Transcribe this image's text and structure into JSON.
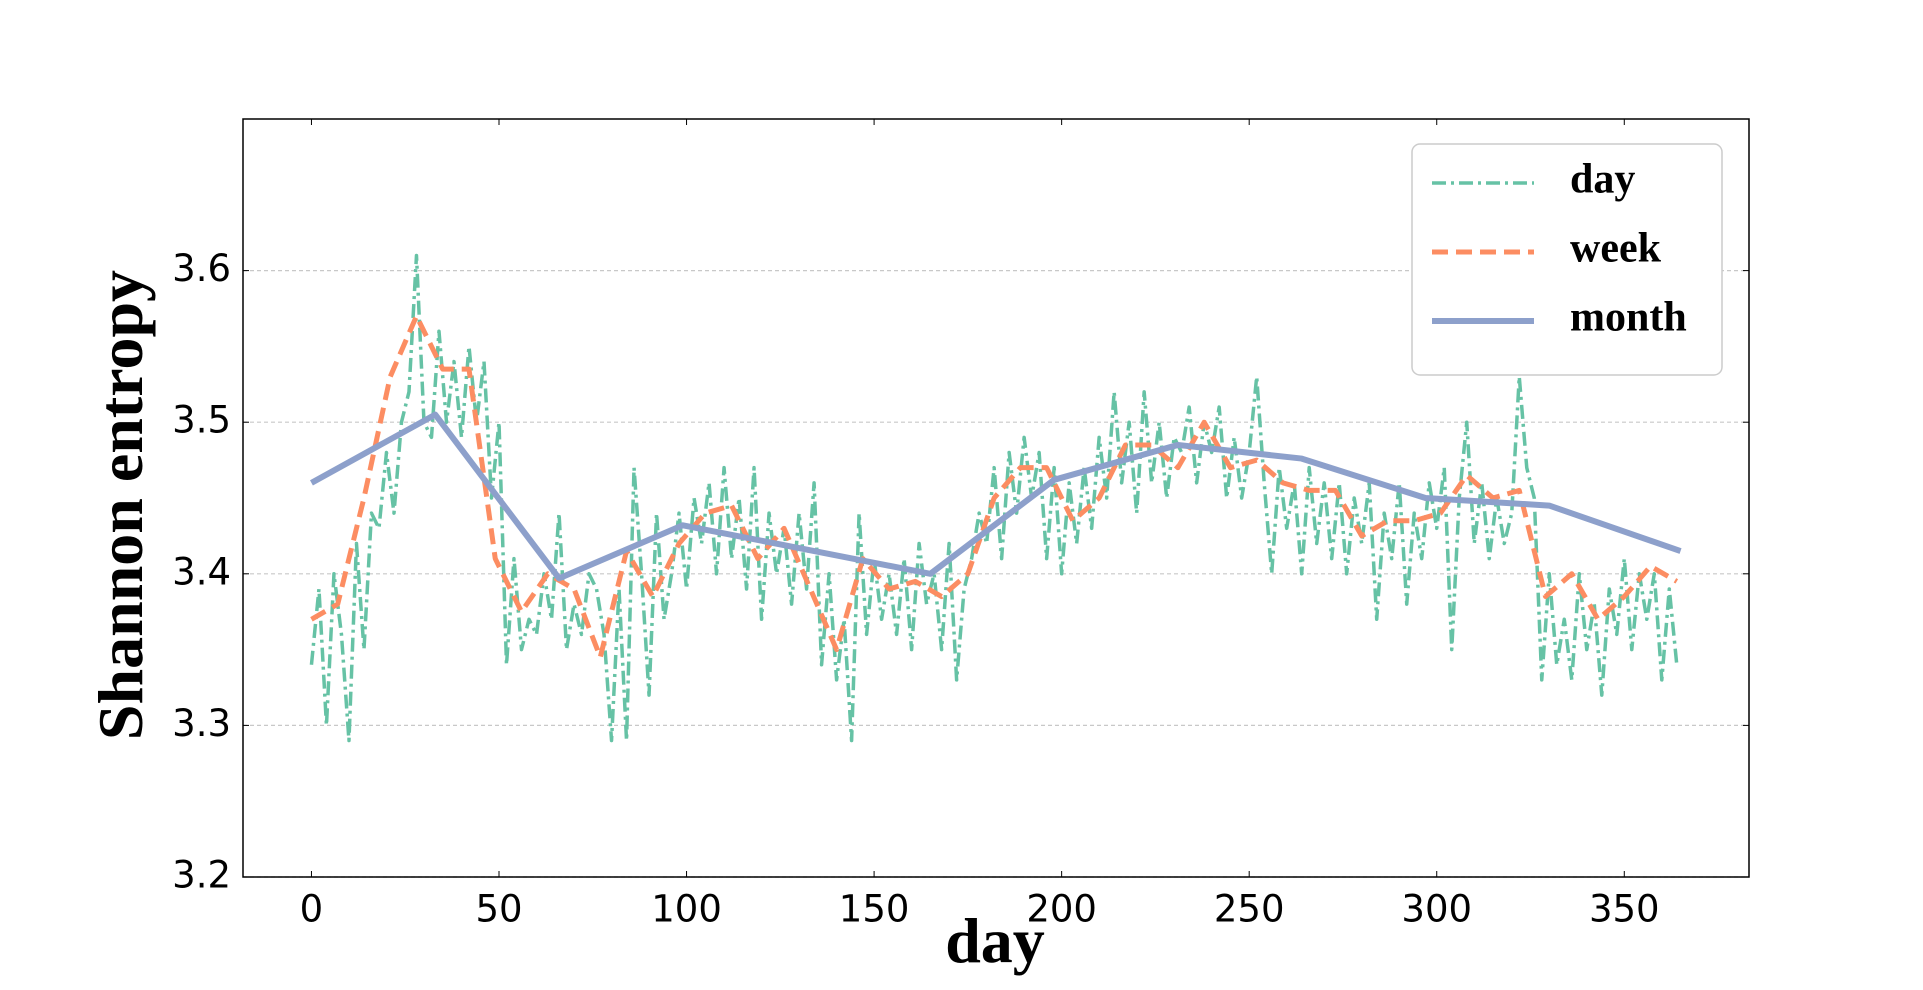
{
  "chart_data": {
    "type": "line",
    "x_label": "day",
    "y_label": "Shannon entropy",
    "xlim": [
      -18.25,
      383.25
    ],
    "xticks": [
      0,
      50,
      100,
      150,
      200,
      250,
      300,
      350
    ],
    "ylim": [
      3.2,
      3.7
    ],
    "yticks": [
      3.2,
      3.3,
      3.4,
      3.5,
      3.6
    ],
    "grid": true,
    "legend": "upper right",
    "series": [
      {
        "name": "day",
        "color": "#66c2a5",
        "x": [
          0,
          2,
          4,
          6,
          8,
          10,
          12,
          14,
          16,
          18,
          20,
          22,
          24,
          26,
          28,
          30,
          32,
          34,
          36,
          38,
          40,
          42,
          44,
          46,
          48,
          50,
          52,
          54,
          56,
          58,
          60,
          62,
          64,
          66,
          68,
          70,
          72,
          74,
          76,
          78,
          80,
          82,
          84,
          86,
          88,
          90,
          92,
          94,
          96,
          98,
          100,
          102,
          104,
          106,
          108,
          110,
          112,
          114,
          116,
          118,
          120,
          122,
          124,
          126,
          128,
          130,
          132,
          134,
          136,
          138,
          140,
          142,
          144,
          146,
          148,
          150,
          152,
          154,
          156,
          158,
          160,
          162,
          164,
          166,
          168,
          170,
          172,
          174,
          176,
          178,
          180,
          182,
          184,
          186,
          188,
          190,
          192,
          194,
          196,
          198,
          200,
          202,
          204,
          206,
          208,
          210,
          212,
          214,
          216,
          218,
          220,
          222,
          224,
          226,
          228,
          230,
          232,
          234,
          236,
          238,
          240,
          242,
          244,
          246,
          248,
          250,
          252,
          254,
          256,
          258,
          260,
          262,
          264,
          266,
          268,
          270,
          272,
          274,
          276,
          278,
          280,
          282,
          284,
          286,
          288,
          290,
          292,
          294,
          296,
          298,
          300,
          302,
          304,
          306,
          308,
          310,
          312,
          314,
          316,
          318,
          320,
          322,
          324,
          326,
          328,
          330,
          332,
          334,
          336,
          338,
          340,
          342,
          344,
          346,
          348,
          350,
          352,
          354,
          356,
          358,
          360,
          362,
          364
        ],
        "values": [
          3.34,
          3.39,
          3.3,
          3.4,
          3.36,
          3.29,
          3.42,
          3.35,
          3.44,
          3.43,
          3.48,
          3.44,
          3.5,
          3.52,
          3.61,
          3.5,
          3.49,
          3.56,
          3.5,
          3.54,
          3.49,
          3.55,
          3.5,
          3.54,
          3.45,
          3.5,
          3.34,
          3.41,
          3.35,
          3.37,
          3.36,
          3.4,
          3.37,
          3.44,
          3.35,
          3.38,
          3.36,
          3.4,
          3.39,
          3.36,
          3.29,
          3.39,
          3.29,
          3.47,
          3.4,
          3.32,
          3.44,
          3.37,
          3.4,
          3.44,
          3.39,
          3.45,
          3.42,
          3.46,
          3.4,
          3.47,
          3.41,
          3.45,
          3.39,
          3.47,
          3.37,
          3.44,
          3.4,
          3.43,
          3.38,
          3.44,
          3.39,
          3.46,
          3.34,
          3.4,
          3.33,
          3.37,
          3.29,
          3.44,
          3.36,
          3.41,
          3.37,
          3.4,
          3.36,
          3.41,
          3.35,
          3.42,
          3.38,
          3.4,
          3.35,
          3.42,
          3.33,
          3.39,
          3.41,
          3.44,
          3.42,
          3.47,
          3.41,
          3.48,
          3.44,
          3.49,
          3.45,
          3.48,
          3.41,
          3.47,
          3.4,
          3.46,
          3.42,
          3.47,
          3.43,
          3.49,
          3.45,
          3.52,
          3.46,
          3.5,
          3.44,
          3.52,
          3.46,
          3.5,
          3.45,
          3.49,
          3.48,
          3.51,
          3.46,
          3.5,
          3.48,
          3.51,
          3.45,
          3.49,
          3.45,
          3.48,
          3.53,
          3.46,
          3.4,
          3.47,
          3.43,
          3.46,
          3.4,
          3.47,
          3.42,
          3.46,
          3.41,
          3.46,
          3.4,
          3.45,
          3.42,
          3.46,
          3.37,
          3.44,
          3.41,
          3.46,
          3.38,
          3.44,
          3.41,
          3.46,
          3.43,
          3.47,
          3.35,
          3.45,
          3.5,
          3.42,
          3.46,
          3.41,
          3.45,
          3.42,
          3.44,
          3.53,
          3.47,
          3.45,
          3.33,
          3.4,
          3.34,
          3.37,
          3.33,
          3.4,
          3.35,
          3.38,
          3.32,
          3.39,
          3.36,
          3.41,
          3.35,
          3.4,
          3.37,
          3.4,
          3.33,
          3.39,
          3.34
        ]
      },
      {
        "name": "week",
        "color": "#fc8d62",
        "x": [
          0,
          7,
          14,
          21,
          28,
          35,
          42,
          49,
          56,
          63,
          70,
          77,
          84,
          91,
          98,
          105,
          112,
          119,
          126,
          133,
          140,
          147,
          154,
          161,
          168,
          175,
          182,
          189,
          196,
          203,
          210,
          217,
          224,
          231,
          238,
          245,
          252,
          259,
          266,
          273,
          280,
          287,
          294,
          301,
          308,
          315,
          322,
          329,
          336,
          343,
          350,
          357,
          364
        ],
        "values": [
          3.37,
          3.38,
          3.45,
          3.53,
          3.57,
          3.535,
          3.535,
          3.41,
          3.375,
          3.4,
          3.39,
          3.345,
          3.415,
          3.385,
          3.42,
          3.44,
          3.445,
          3.41,
          3.43,
          3.39,
          3.35,
          3.41,
          3.39,
          3.395,
          3.385,
          3.4,
          3.45,
          3.47,
          3.47,
          3.435,
          3.45,
          3.485,
          3.485,
          3.47,
          3.5,
          3.47,
          3.475,
          3.46,
          3.455,
          3.455,
          3.425,
          3.435,
          3.435,
          3.44,
          3.465,
          3.45,
          3.455,
          3.385,
          3.4,
          3.37,
          3.385,
          3.405,
          3.395
        ]
      },
      {
        "name": "month",
        "color": "#8da0cb",
        "x": [
          0,
          33,
          66,
          99,
          132,
          165,
          198,
          231,
          264,
          297,
          330,
          365
        ],
        "values": [
          3.46,
          3.505,
          3.397,
          3.432,
          3.416,
          3.4,
          3.462,
          3.485,
          3.476,
          3.45,
          3.445,
          3.415
        ]
      }
    ]
  }
}
